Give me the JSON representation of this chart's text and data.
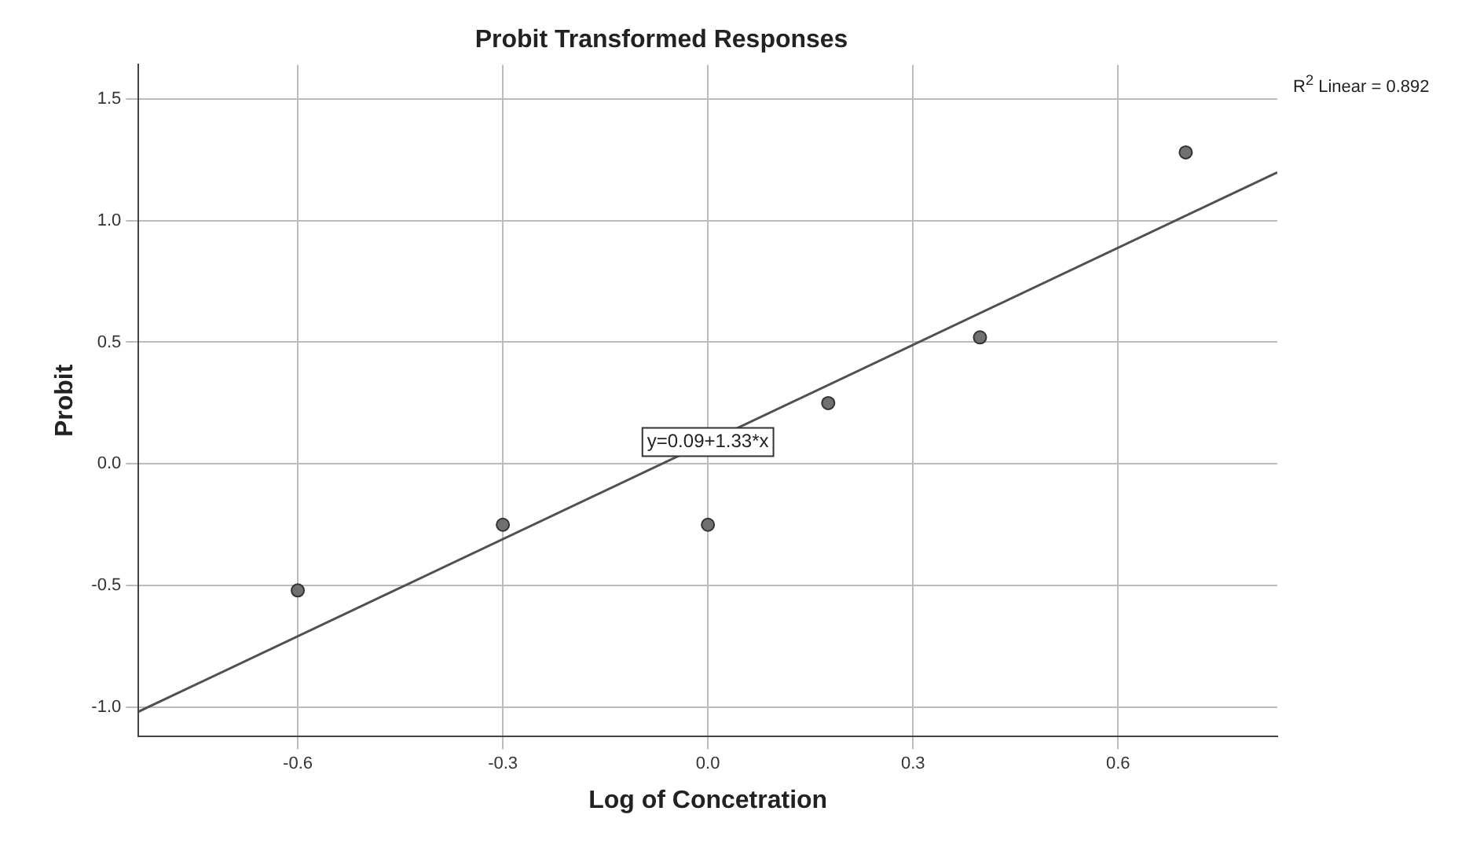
{
  "chart_data": {
    "type": "scatter",
    "title": "Probit Transformed Responses",
    "xlabel": "Log of Concetration",
    "ylabel": "Probit",
    "xlim": [
      -0.833,
      0.833
    ],
    "ylim": [
      -1.12,
      1.64
    ],
    "xticks": [
      {
        "value": -0.6,
        "label": "-0.6"
      },
      {
        "value": -0.3,
        "label": "-0.3"
      },
      {
        "value": 0,
        "label": "0.0"
      },
      {
        "value": 0.3,
        "label": "0.3"
      },
      {
        "value": 0.6,
        "label": "0.6"
      }
    ],
    "yticks": [
      {
        "value": -1,
        "label": "-1.0"
      },
      {
        "value": -0.5,
        "label": "-0.5"
      },
      {
        "value": 0,
        "label": "0.0"
      },
      {
        "value": 0.5,
        "label": "0.5"
      },
      {
        "value": 1,
        "label": "1.0"
      },
      {
        "value": 1.5,
        "label": "1.5"
      }
    ],
    "grid": true,
    "series": [
      {
        "type": "scatter",
        "marker": "circle",
        "color": "#707070",
        "x": [
          -0.6,
          -0.3,
          0,
          0.176,
          0.398,
          0.699
        ],
        "values": [
          -0.52,
          -0.25,
          -0.25,
          0.25,
          0.52,
          1.28
        ]
      },
      {
        "type": "line",
        "marker": "none",
        "color": "#505050",
        "x": [
          -0.833,
          0.833
        ],
        "values": [
          -1.018,
          1.198
        ]
      }
    ],
    "annotations": [
      {
        "text": "y=0.09+1.33*x",
        "x": 0,
        "y": 0.09
      },
      "R$^{2}$ Linear = 0.892"
    ]
  }
}
